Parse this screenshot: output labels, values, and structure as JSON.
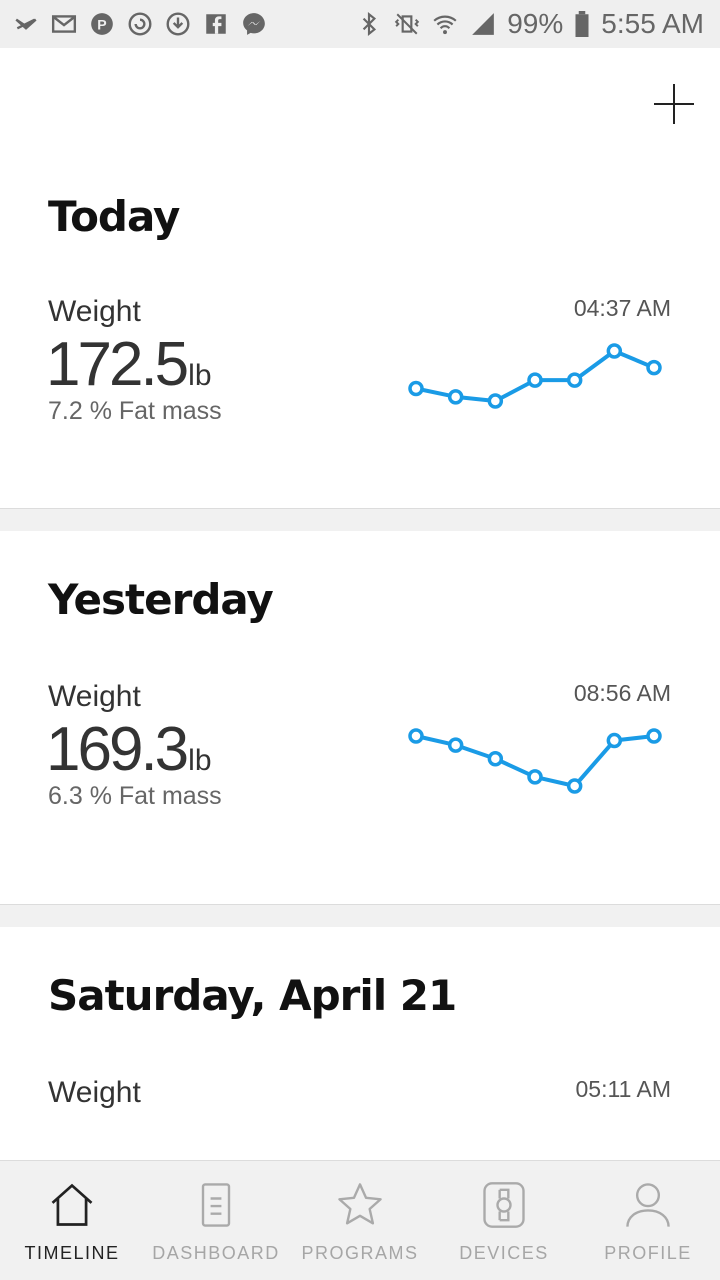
{
  "status_bar": {
    "battery": "99%",
    "time": "5:55 AM",
    "left_icons": [
      "notification-off-icon",
      "gmail-icon",
      "pinterest-icon",
      "sync-icon",
      "download-icon",
      "facebook-icon",
      "messenger-icon"
    ],
    "right_icons": [
      "bluetooth-icon",
      "vibrate-icon",
      "wifi-icon",
      "signal-icon",
      "battery-icon"
    ]
  },
  "header": {
    "add_icon": "plus-icon"
  },
  "days": [
    {
      "title": "Today",
      "entry": {
        "label": "Weight",
        "time": "04:37 AM",
        "value": "172.5",
        "unit": "lb",
        "fat": "7.2 % Fat mass"
      },
      "chart_data": {
        "type": "line",
        "values": [
          170.8,
          170.6,
          170.5,
          171.0,
          171.0,
          171.7,
          171.3
        ]
      }
    },
    {
      "title": "Yesterday",
      "entry": {
        "label": "Weight",
        "time": "08:56 AM",
        "value": "169.3",
        "unit": "lb",
        "fat": "6.3 % Fat mass"
      },
      "chart_data": {
        "type": "line",
        "values": [
          171.0,
          170.8,
          170.5,
          170.1,
          169.9,
          170.9,
          171.0
        ]
      }
    },
    {
      "title": "Saturday, April 21",
      "entry": {
        "label": "Weight",
        "time": "05:11 AM"
      }
    }
  ],
  "nav": [
    {
      "label": "TIMELINE",
      "icon": "home-icon",
      "active": true
    },
    {
      "label": "DASHBOARD",
      "icon": "dashboard-icon",
      "active": false
    },
    {
      "label": "PROGRAMS",
      "icon": "star-icon",
      "active": false
    },
    {
      "label": "DEVICES",
      "icon": "watch-icon",
      "active": false
    },
    {
      "label": "PROFILE",
      "icon": "person-icon",
      "active": false
    }
  ],
  "colors": {
    "accent": "#1a9be6",
    "text": "#222222",
    "muted": "#aaaaaa"
  }
}
